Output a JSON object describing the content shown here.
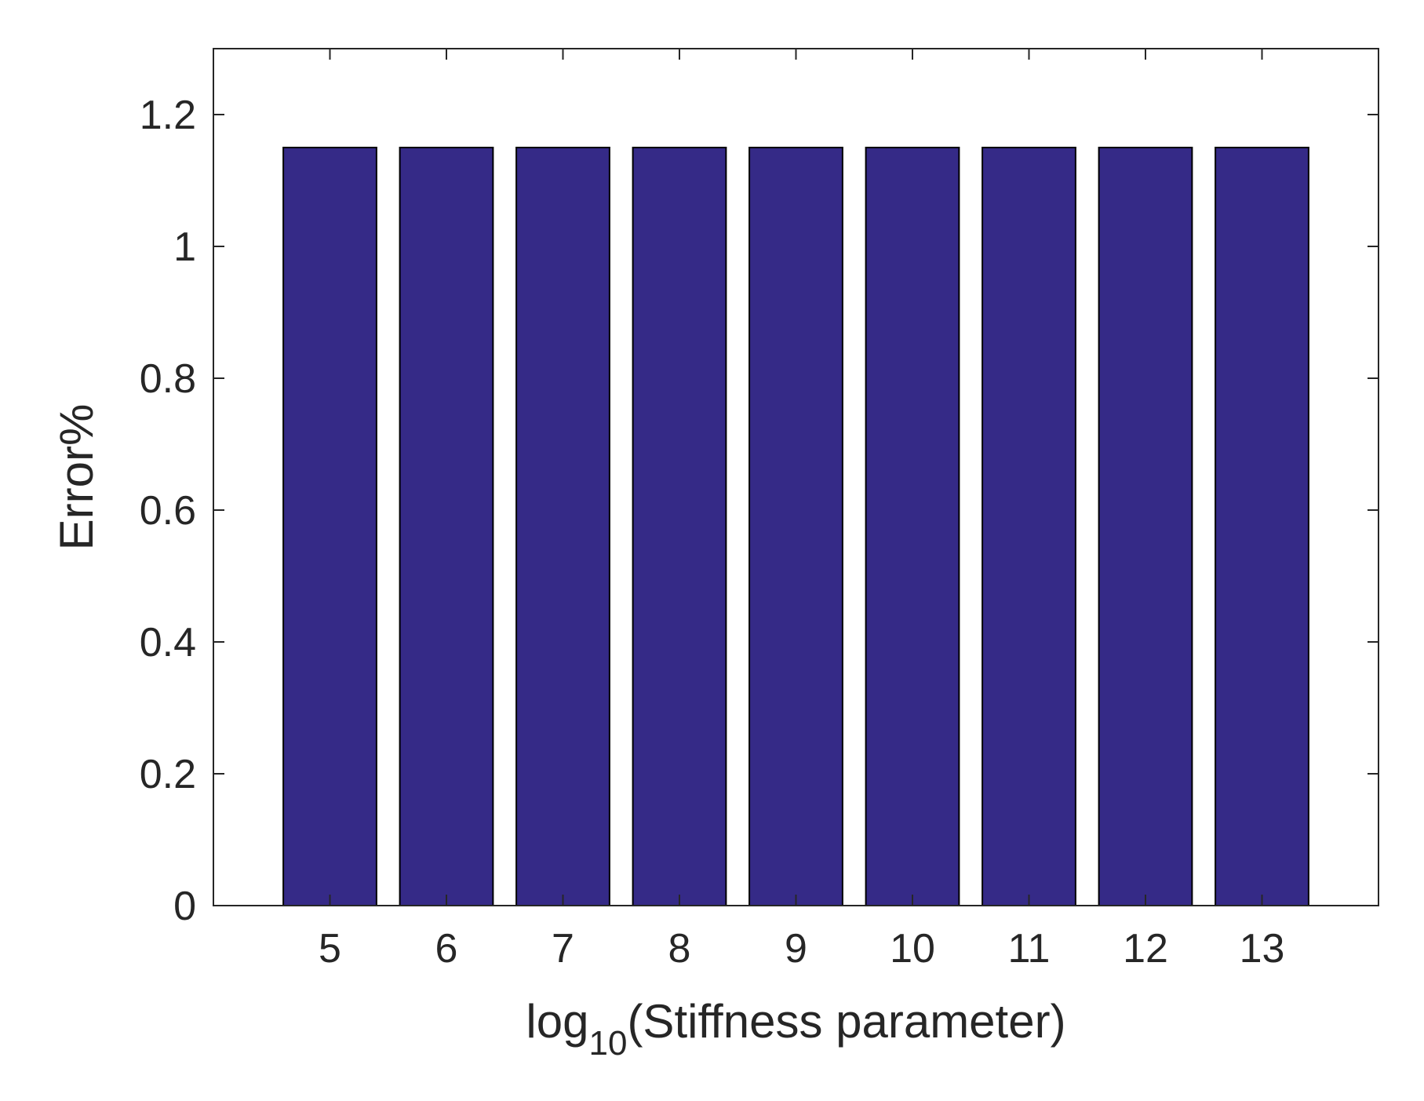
{
  "chart_data": {
    "type": "bar",
    "categories": [
      "5",
      "6",
      "7",
      "8",
      "9",
      "10",
      "11",
      "12",
      "13"
    ],
    "values": [
      1.15,
      1.15,
      1.15,
      1.15,
      1.15,
      1.15,
      1.15,
      1.15,
      1.15
    ],
    "ylim": [
      0,
      1.3
    ],
    "yticks": [
      0,
      0.2,
      0.4,
      0.6,
      0.8,
      1,
      1.2
    ],
    "ytick_labels": [
      "0",
      "0.2",
      "0.4",
      "0.6",
      "0.8",
      "1",
      "1.2"
    ],
    "xlim": [
      4,
      14
    ],
    "xlabel": {
      "main": "log",
      "subscript": "10",
      "suffix": "(Stiffness parameter)"
    },
    "ylabel": "Error%",
    "bar_color": "#352a87",
    "edge_color": "#000000",
    "grid": false,
    "box": true,
    "legend": "none"
  }
}
